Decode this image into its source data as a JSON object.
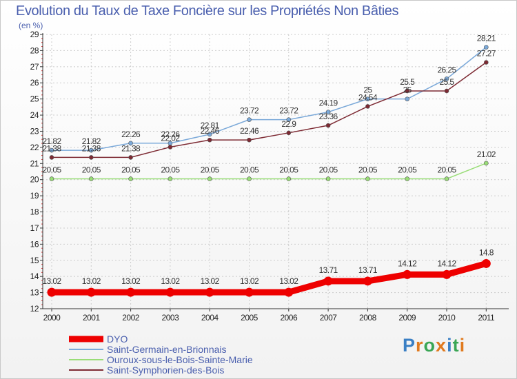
{
  "chart_data": {
    "type": "line",
    "title": "Evolution du Taux de Taxe Foncière sur les Propriétés Non Bâties",
    "ylabel": "(en %)",
    "xlabel": "",
    "categories": [
      "2000",
      "2001",
      "2002",
      "2003",
      "2004",
      "2005",
      "2006",
      "2007",
      "2008",
      "2009",
      "2010",
      "2011"
    ],
    "ylim": [
      12,
      29
    ],
    "yticks": [
      12,
      13,
      14,
      15,
      16,
      17,
      18,
      19,
      20,
      21,
      22,
      23,
      24,
      25,
      26,
      27,
      28,
      29
    ],
    "grid": true,
    "legend": "bottom-left",
    "series": [
      {
        "name": "DYO",
        "color": "#ee0000",
        "values": [
          13.02,
          13.02,
          13.02,
          13.02,
          13.02,
          13.02,
          13.02,
          13.71,
          13.71,
          14.12,
          14.12,
          14.8
        ],
        "labels": [
          "13.02",
          "13.02",
          "13.02",
          "13.02",
          "13.02",
          "13.02",
          "13.02",
          "13.71",
          "13.71",
          "14.12",
          "14.12",
          "14.8"
        ]
      },
      {
        "name": "Saint-Germain-en-Brionnais",
        "color": "#7ba9d9",
        "values": [
          21.82,
          21.82,
          22.26,
          22.26,
          22.81,
          23.72,
          23.72,
          24.19,
          25,
          25,
          26.25,
          28.21
        ],
        "labels": [
          "21.82",
          "21.82",
          "22.26",
          "22.26",
          "22.81",
          "23.72",
          "23.72",
          "24.19",
          "25",
          "25",
          "26.25",
          "28.21"
        ]
      },
      {
        "name": "Ouroux-sous-le-Bois-Sainte-Marie",
        "color": "#99dd77",
        "values": [
          20.05,
          20.05,
          20.05,
          20.05,
          20.05,
          20.05,
          20.05,
          20.05,
          20.05,
          20.05,
          20.05,
          21.02
        ],
        "labels": [
          "20.05",
          "20.05",
          "20.05",
          "20.05",
          "20.05",
          "20.05",
          "20.05",
          "20.05",
          "20.05",
          "20.05",
          "20.05",
          "21.02"
        ]
      },
      {
        "name": "Saint-Symphorien-des-Bois",
        "color": "#7d2a33",
        "values": [
          21.38,
          21.38,
          21.38,
          22.02,
          22.46,
          22.46,
          22.9,
          23.36,
          24.54,
          25.5,
          25.5,
          27.27
        ],
        "labels": [
          "21.38",
          "21.38",
          "21.38",
          "22.02",
          "22.46",
          "22.46",
          "22.9",
          "23.36",
          "24.54",
          "25.5",
          "25.5",
          "27.27"
        ]
      }
    ]
  },
  "logo": {
    "text": "Proxiti"
  }
}
